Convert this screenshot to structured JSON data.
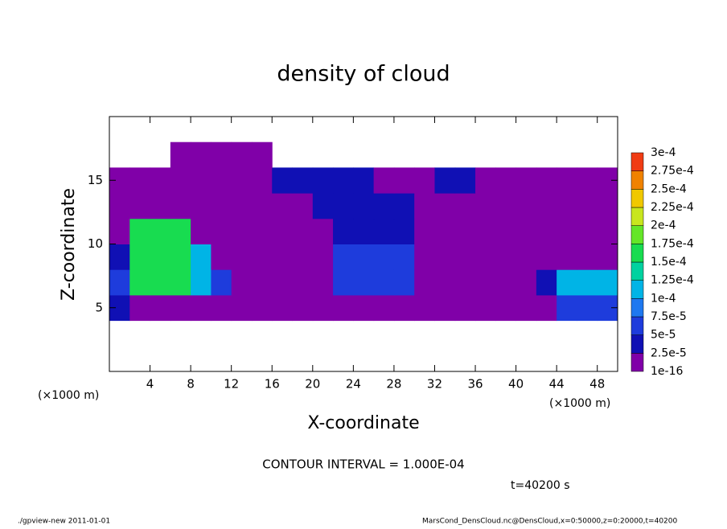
{
  "chart_data": {
    "type": "contour",
    "title": "density of cloud",
    "x_label": "X-coordinate",
    "y_label": "Z-coordinate",
    "x_unit": "(×1000 m)",
    "x_unit_right": "(×1000 m)",
    "xlim": [
      0,
      50
    ],
    "ylim": [
      0,
      20
    ],
    "xticks": [
      4,
      8,
      12,
      16,
      20,
      24,
      28,
      32,
      36,
      40,
      44,
      48
    ],
    "yticks": [
      5,
      10,
      15
    ],
    "x": [
      1,
      3,
      5,
      7,
      9,
      11,
      13,
      15,
      17,
      19,
      21,
      23,
      25,
      27,
      29,
      31,
      33,
      35,
      37,
      39,
      41,
      43,
      45,
      47,
      49
    ],
    "z": [
      1,
      3,
      5,
      7,
      9,
      11,
      13,
      15,
      17,
      19
    ],
    "values": [
      [
        null,
        null,
        null,
        null,
        null,
        null,
        null,
        null,
        null,
        null,
        null,
        null,
        null,
        null,
        null,
        null,
        null,
        null,
        null,
        null,
        null,
        null,
        null,
        null,
        null
      ],
      [
        null,
        null,
        null,
        null,
        null,
        null,
        null,
        null,
        null,
        null,
        null,
        null,
        null,
        null,
        null,
        null,
        null,
        null,
        null,
        null,
        null,
        null,
        null,
        null,
        null
      ],
      [
        4e-05,
        2e-05,
        2e-05,
        2e-05,
        2e-05,
        2e-05,
        2e-05,
        2e-05,
        2e-05,
        2e-05,
        2e-05,
        2e-05,
        2e-05,
        2e-05,
        2e-05,
        2e-05,
        2e-05,
        2e-05,
        2e-05,
        2e-05,
        2e-05,
        2e-05,
        5e-05,
        5e-05,
        5e-05
      ],
      [
        5e-05,
        0.00016,
        0.00016,
        0.00016,
        0.00012,
        5e-05,
        2e-05,
        2e-05,
        2e-05,
        2e-05,
        2e-05,
        6e-05,
        6e-05,
        6e-05,
        6e-05,
        2e-05,
        2e-05,
        2e-05,
        2e-05,
        2e-05,
        2e-05,
        3e-05,
        0.0001,
        0.0001,
        0.0001
      ],
      [
        3e-05,
        0.00016,
        0.00016,
        0.00016,
        0.0001,
        1e-05,
        1e-05,
        1e-05,
        1e-05,
        1e-05,
        1e-05,
        5e-05,
        5e-05,
        5e-05,
        5e-05,
        1e-05,
        1e-05,
        1e-05,
        1e-05,
        1e-05,
        1e-05,
        1e-05,
        1e-05,
        1e-05,
        1e-05
      ],
      [
        1e-05,
        0.00015,
        0.00015,
        0.00015,
        1e-05,
        1e-05,
        1e-05,
        1e-05,
        1e-05,
        1e-05,
        1e-05,
        4e-05,
        4e-05,
        4e-05,
        4e-05,
        1e-05,
        1e-05,
        1e-05,
        1e-05,
        1e-05,
        1e-05,
        1e-05,
        1e-05,
        1e-05,
        1e-05
      ],
      [
        1e-05,
        1e-05,
        1e-05,
        1e-05,
        1e-05,
        1e-05,
        1e-05,
        1e-05,
        1e-05,
        1e-05,
        4e-05,
        4e-05,
        4e-05,
        4e-05,
        4e-05,
        1e-05,
        1e-05,
        1e-05,
        1e-05,
        1e-05,
        1e-05,
        1e-05,
        1e-05,
        1e-05,
        1e-05
      ],
      [
        1e-05,
        1e-05,
        1e-05,
        1e-05,
        1e-05,
        1e-05,
        1e-05,
        1e-05,
        3e-05,
        3e-05,
        3e-05,
        3e-05,
        3e-05,
        1e-05,
        1e-05,
        1e-05,
        3e-05,
        3e-05,
        1e-05,
        1e-05,
        1e-05,
        1e-05,
        1e-05,
        1e-05,
        1e-05
      ],
      [
        null,
        null,
        null,
        1e-05,
        1e-05,
        1e-05,
        1e-05,
        1e-05,
        null,
        null,
        null,
        null,
        null,
        null,
        null,
        null,
        null,
        null,
        null,
        null,
        null,
        null,
        null,
        null,
        null
      ],
      [
        null,
        null,
        null,
        null,
        null,
        null,
        null,
        null,
        null,
        null,
        null,
        null,
        null,
        null,
        null,
        null,
        null,
        null,
        null,
        null,
        null,
        null,
        null,
        null,
        null
      ]
    ],
    "levels": [
      {
        "value": 1e-16,
        "label": "1e-16"
      },
      {
        "value": 2.5e-05,
        "label": "2.5e-5"
      },
      {
        "value": 5e-05,
        "label": "5e-5"
      },
      {
        "value": 7.5e-05,
        "label": "7.5e-5"
      },
      {
        "value": 0.0001,
        "label": "1e-4"
      },
      {
        "value": 0.000125,
        "label": "1.25e-4"
      },
      {
        "value": 0.00015,
        "label": "1.5e-4"
      },
      {
        "value": 0.000175,
        "label": "1.75e-4"
      },
      {
        "value": 0.0002,
        "label": "2e-4"
      },
      {
        "value": 0.000225,
        "label": "2.25e-4"
      },
      {
        "value": 0.00025,
        "label": "2.5e-4"
      },
      {
        "value": 0.000275,
        "label": "2.75e-4"
      },
      {
        "value": 0.0003,
        "label": "3e-4"
      }
    ],
    "colors": [
      "#8000a8",
      "#1010b4",
      "#1e3cdc",
      "#1e78f0",
      "#00b4e6",
      "#00d2a0",
      "#18dc50",
      "#64e628",
      "#c8e61e",
      "#f0c800",
      "#f08200",
      "#f03c14",
      "#f07878"
    ],
    "contour_interval": "CONTOUR INTERVAL = 1.000E-04",
    "time_label": "t=40200 s",
    "footer_left": "./gpview-new   2011-01-01",
    "footer_right": "MarsCond_DensCloud.nc@DensCloud,x=0:50000,z=0:20000,t=40200"
  }
}
